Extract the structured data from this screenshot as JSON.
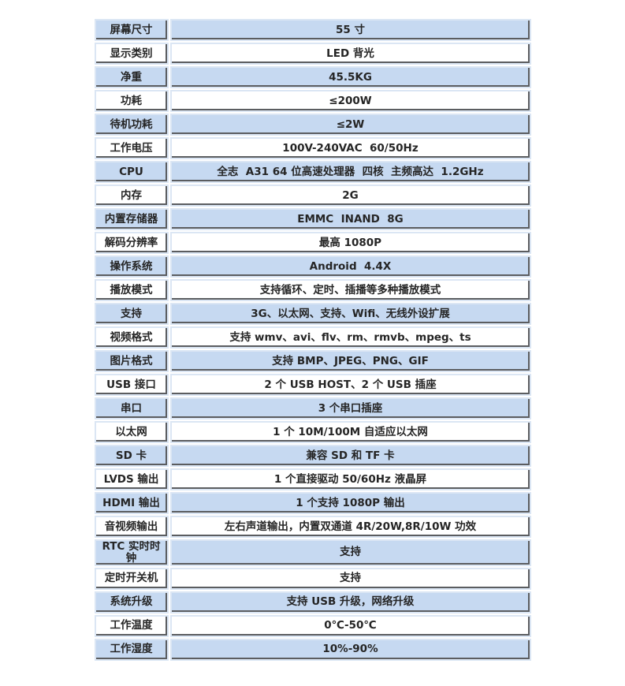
{
  "colors": {
    "page_background": "#ffffff",
    "row_fill_blue": "#c6d9f1",
    "row_fill_white": "#ffffff",
    "cell_border_light": "#dbe6f4",
    "cell_border_dark": "#5b5d60",
    "text": "#252525"
  },
  "spec_table": {
    "rows": [
      {
        "label": "屏幕尺寸",
        "value": "55 寸"
      },
      {
        "label": "显示类别",
        "value": "LED 背光"
      },
      {
        "label": "净重",
        "value": "45.5KG"
      },
      {
        "label": "功耗",
        "value": "≤200W"
      },
      {
        "label": "待机功耗",
        "value": "≤2W"
      },
      {
        "label": "工作电压",
        "value": "100V-240VAC  60/50Hz"
      },
      {
        "label": "CPU",
        "value": "全志  A31 64 位高速处理器  四核  主频高达  1.2GHz"
      },
      {
        "label": "内存",
        "value": "2G"
      },
      {
        "label": "内置存储器",
        "value": "EMMC  INAND  8G"
      },
      {
        "label": "解码分辨率",
        "value": "最高 1080P"
      },
      {
        "label": "操作系统",
        "value": "Android  4.4X"
      },
      {
        "label": "播放模式",
        "value": "支持循环、定时、插播等多种播放模式"
      },
      {
        "label": "支持",
        "value": "3G、以太网、支持、Wifi、无线外设扩展"
      },
      {
        "label": "视频格式",
        "value": "支持 wmv、avi、flv、rm、rmvb、mpeg、ts"
      },
      {
        "label": "图片格式",
        "value": "支持 BMP、JPEG、PNG、GIF"
      },
      {
        "label": "USB 接口",
        "value": "2 个 USB HOST、2 个 USB 插座"
      },
      {
        "label": "串口",
        "value": "3 个串口插座"
      },
      {
        "label": "以太网",
        "value": "1 个 10M/100M 自适应以太网"
      },
      {
        "label": "SD 卡",
        "value": "兼容 SD 和 TF 卡"
      },
      {
        "label": "LVDS 输出",
        "value": "1 个直接驱动 50/60Hz 液晶屏"
      },
      {
        "label": "HDMI 输出",
        "value": "1 个支持 1080P 输出"
      },
      {
        "label": "音视频输出",
        "value": "左右声道输出，内置双通道 4R/20W,8R/10W 功效"
      },
      {
        "label": "RTC 实时时钟",
        "value": "支持"
      },
      {
        "label": "定时开关机",
        "value": "支持"
      },
      {
        "label": "系统升级",
        "value": "支持 USB 升级，网络升级"
      },
      {
        "label": "工作温度",
        "value": "0℃-50℃"
      },
      {
        "label": "工作湿度",
        "value": "10%-90%"
      }
    ]
  }
}
